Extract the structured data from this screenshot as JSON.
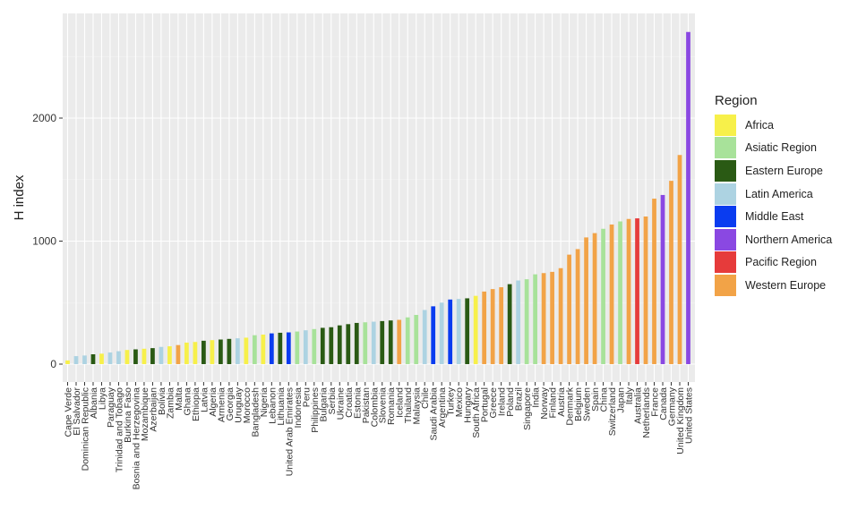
{
  "chart_data": {
    "type": "bar",
    "title": "",
    "xlabel": "",
    "ylabel": "H index",
    "ylim": [
      0,
      2800
    ],
    "y_ticks": [
      0,
      1000,
      2000
    ],
    "grid": true,
    "legend_title": "Region",
    "legend_position": "right",
    "regions": [
      {
        "name": "Africa",
        "color": "#F7F04A"
      },
      {
        "name": "Asiatic Region",
        "color": "#A8E29A"
      },
      {
        "name": "Eastern Europe",
        "color": "#2A5A14"
      },
      {
        "name": "Latin America",
        "color": "#ADD3E2"
      },
      {
        "name": "Middle East",
        "color": "#0A3CF0"
      },
      {
        "name": "Northern America",
        "color": "#8A48E2"
      },
      {
        "name": "Pacific Region",
        "color": "#E63B3B"
      },
      {
        "name": "Western Europe",
        "color": "#F2A347"
      }
    ],
    "bars": [
      {
        "country": "Cape Verde",
        "region": "Africa",
        "value": 30
      },
      {
        "country": "El Salvador",
        "region": "Latin America",
        "value": 65
      },
      {
        "country": "Dominican Republic",
        "region": "Latin America",
        "value": 70
      },
      {
        "country": "Albania",
        "region": "Eastern Europe",
        "value": 80
      },
      {
        "country": "Libya",
        "region": "Africa",
        "value": 85
      },
      {
        "country": "Paraguay",
        "region": "Latin America",
        "value": 95
      },
      {
        "country": "Trinidad and Tobago",
        "region": "Latin America",
        "value": 105
      },
      {
        "country": "Burkina Faso",
        "region": "Africa",
        "value": 115
      },
      {
        "country": "Bosnia and Herzegovina",
        "region": "Eastern Europe",
        "value": 120
      },
      {
        "country": "Mozambique",
        "region": "Africa",
        "value": 125
      },
      {
        "country": "Azerbaijan",
        "region": "Eastern Europe",
        "value": 130
      },
      {
        "country": "Bolivia",
        "region": "Latin America",
        "value": 140
      },
      {
        "country": "Zambia",
        "region": "Africa",
        "value": 145
      },
      {
        "country": "Malta",
        "region": "Western Europe",
        "value": 155
      },
      {
        "country": "Ghana",
        "region": "Africa",
        "value": 175
      },
      {
        "country": "Ethiopia",
        "region": "Africa",
        "value": 180
      },
      {
        "country": "Latvia",
        "region": "Eastern Europe",
        "value": 190
      },
      {
        "country": "Algeria",
        "region": "Africa",
        "value": 195
      },
      {
        "country": "Armenia",
        "region": "Eastern Europe",
        "value": 200
      },
      {
        "country": "Georgia",
        "region": "Eastern Europe",
        "value": 205
      },
      {
        "country": "Uruguay",
        "region": "Latin America",
        "value": 210
      },
      {
        "country": "Morocco",
        "region": "Africa",
        "value": 215
      },
      {
        "country": "Bangladesh",
        "region": "Asiatic Region",
        "value": 235
      },
      {
        "country": "Nigeria",
        "region": "Africa",
        "value": 240
      },
      {
        "country": "Lebanon",
        "region": "Middle East",
        "value": 250
      },
      {
        "country": "Lithuania",
        "region": "Eastern Europe",
        "value": 255
      },
      {
        "country": "United Arab Emirates",
        "region": "Middle East",
        "value": 258
      },
      {
        "country": "Indonesia",
        "region": "Asiatic Region",
        "value": 265
      },
      {
        "country": "Peru",
        "region": "Latin America",
        "value": 275
      },
      {
        "country": "Philippines",
        "region": "Asiatic Region",
        "value": 285
      },
      {
        "country": "Bulgaria",
        "region": "Eastern Europe",
        "value": 295
      },
      {
        "country": "Serbia",
        "region": "Eastern Europe",
        "value": 300
      },
      {
        "country": "Ukraine",
        "region": "Eastern Europe",
        "value": 315
      },
      {
        "country": "Croatia",
        "region": "Eastern Europe",
        "value": 325
      },
      {
        "country": "Estonia",
        "region": "Eastern Europe",
        "value": 335
      },
      {
        "country": "Pakistan",
        "region": "Asiatic Region",
        "value": 340
      },
      {
        "country": "Colombia",
        "region": "Latin America",
        "value": 345
      },
      {
        "country": "Slovenia",
        "region": "Eastern Europe",
        "value": 350
      },
      {
        "country": "Romania",
        "region": "Eastern Europe",
        "value": 355
      },
      {
        "country": "Iceland",
        "region": "Western Europe",
        "value": 360
      },
      {
        "country": "Thailand",
        "region": "Asiatic Region",
        "value": 380
      },
      {
        "country": "Malaysia",
        "region": "Asiatic Region",
        "value": 400
      },
      {
        "country": "Chile",
        "region": "Latin America",
        "value": 440
      },
      {
        "country": "Saudi Arabia",
        "region": "Middle East",
        "value": 470
      },
      {
        "country": "Argentina",
        "region": "Latin America",
        "value": 500
      },
      {
        "country": "Turkey",
        "region": "Middle East",
        "value": 525
      },
      {
        "country": "Mexico",
        "region": "Latin America",
        "value": 530
      },
      {
        "country": "Hungary",
        "region": "Eastern Europe",
        "value": 535
      },
      {
        "country": "South Africa",
        "region": "Africa",
        "value": 555
      },
      {
        "country": "Portugal",
        "region": "Western Europe",
        "value": 590
      },
      {
        "country": "Greece",
        "region": "Western Europe",
        "value": 610
      },
      {
        "country": "Ireland",
        "region": "Western Europe",
        "value": 625
      },
      {
        "country": "Poland",
        "region": "Eastern Europe",
        "value": 650
      },
      {
        "country": "Brazil",
        "region": "Latin America",
        "value": 680
      },
      {
        "country": "Singapore",
        "region": "Asiatic Region",
        "value": 690
      },
      {
        "country": "India",
        "region": "Asiatic Region",
        "value": 730
      },
      {
        "country": "Norway",
        "region": "Western Europe",
        "value": 740
      },
      {
        "country": "Finland",
        "region": "Western Europe",
        "value": 750
      },
      {
        "country": "Austria",
        "region": "Western Europe",
        "value": 780
      },
      {
        "country": "Denmark",
        "region": "Western Europe",
        "value": 890
      },
      {
        "country": "Belgium",
        "region": "Western Europe",
        "value": 935
      },
      {
        "country": "Sweden",
        "region": "Western Europe",
        "value": 1030
      },
      {
        "country": "Spain",
        "region": "Western Europe",
        "value": 1065
      },
      {
        "country": "China",
        "region": "Asiatic Region",
        "value": 1100
      },
      {
        "country": "Switzerland",
        "region": "Western Europe",
        "value": 1135
      },
      {
        "country": "Japan",
        "region": "Asiatic Region",
        "value": 1160
      },
      {
        "country": "Italy",
        "region": "Western Europe",
        "value": 1180
      },
      {
        "country": "Australia",
        "region": "Pacific Region",
        "value": 1185
      },
      {
        "country": "Netherlands",
        "region": "Western Europe",
        "value": 1200
      },
      {
        "country": "France",
        "region": "Western Europe",
        "value": 1345
      },
      {
        "country": "Canada",
        "region": "Northern America",
        "value": 1375
      },
      {
        "country": "Germany",
        "region": "Western Europe",
        "value": 1490
      },
      {
        "country": "United Kingdom",
        "region": "Western Europe",
        "value": 1700
      },
      {
        "country": "United States",
        "region": "Northern America",
        "value": 2700
      }
    ]
  }
}
